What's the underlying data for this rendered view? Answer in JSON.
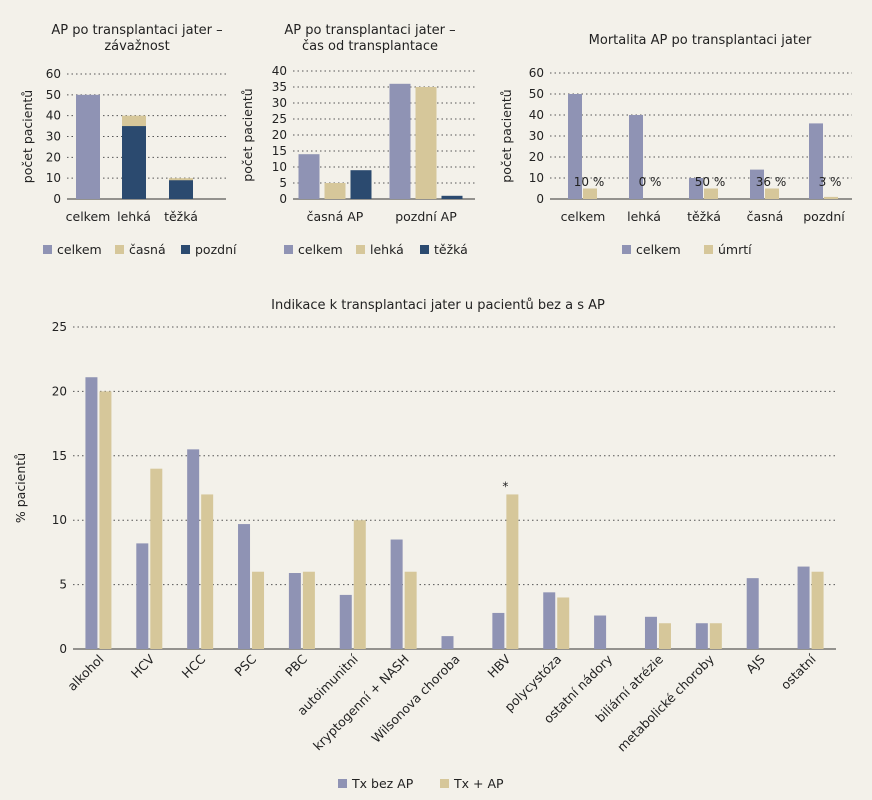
{
  "colors": {
    "celkem": "#8f93b4",
    "lehka": "#d6c79a",
    "casna": "#d6c79a",
    "pozdni": "#2b4a6f",
    "tezka": "#2b4a6f",
    "umrti": "#d6c79a",
    "tx_bez_ap": "#8f93b4",
    "tx_ap": "#d6c79a"
  },
  "chart_data": [
    {
      "type": "bar",
      "title": [
        "AP po transplantaci jater –",
        "závažnost"
      ],
      "ylabel": "počet pacientů",
      "ylim": [
        0,
        60
      ],
      "yticks": [
        0,
        10,
        20,
        30,
        40,
        50,
        60
      ],
      "grid": true,
      "categories": [
        "celkem",
        "lehká",
        "těžká"
      ],
      "series": [
        {
          "name": "celkem",
          "values": [
            50,
            null,
            null
          ]
        },
        {
          "name": "časná",
          "values": [
            null,
            40,
            10
          ]
        },
        {
          "name": "pozdní",
          "values": [
            null,
            35,
            9
          ]
        }
      ],
      "stacked_overlay": true,
      "legend": [
        "celkem",
        "časná",
        "pozdní"
      ],
      "legend_position": "bottom"
    },
    {
      "type": "bar",
      "title": [
        "AP po transplantaci jater –",
        "čas od transplantace"
      ],
      "ylabel": "počet pacientů",
      "ylim": [
        0,
        40
      ],
      "yticks": [
        0,
        5,
        10,
        15,
        20,
        25,
        30,
        35,
        40
      ],
      "grid": true,
      "categories": [
        "časná AP",
        "pozdní AP"
      ],
      "series": [
        {
          "name": "celkem",
          "values": [
            14,
            36
          ]
        },
        {
          "name": "lehká",
          "values": [
            5,
            35
          ]
        },
        {
          "name": "těžká",
          "values": [
            9,
            1
          ]
        }
      ],
      "legend": [
        "celkem",
        "lehká",
        "těžká"
      ],
      "legend_position": "bottom"
    },
    {
      "type": "bar",
      "title": [
        "Mortalita AP po transplantaci jater"
      ],
      "ylabel": "počet pacientů",
      "ylim": [
        0,
        60
      ],
      "yticks": [
        0,
        10,
        20,
        30,
        40,
        50,
        60
      ],
      "grid": true,
      "categories": [
        "celkem",
        "lehká",
        "těžká",
        "časná",
        "pozdní"
      ],
      "series": [
        {
          "name": "celkem",
          "values": [
            50,
            40,
            10,
            14,
            36
          ]
        },
        {
          "name": "úmrtí",
          "values": [
            5,
            0,
            5,
            5,
            1
          ]
        }
      ],
      "data_labels": [
        "10 %",
        "0 %",
        "50 %",
        "36 %",
        "3 %"
      ],
      "legend": [
        "celkem",
        "úmrtí"
      ],
      "legend_position": "bottom"
    },
    {
      "type": "bar",
      "title": [
        "Indikace k transplantaci jater u pacientů bez a s AP"
      ],
      "ylabel": "% pacientů",
      "ylim": [
        0,
        25
      ],
      "yticks": [
        0,
        5,
        10,
        15,
        20,
        25
      ],
      "grid": true,
      "categories": [
        "alkohol",
        "HCV",
        "HCC",
        "PSC",
        "PBC",
        "autoimunitní",
        "kryptogenní + NASH",
        "Wilsonova choroba",
        "HBV",
        "polycystóza",
        "ostatní nádory",
        "biliární atrézie",
        "metabolické choroby",
        "AJS",
        "ostatní"
      ],
      "series": [
        {
          "name": "Tx bez AP",
          "values": [
            21.1,
            8.2,
            15.5,
            9.7,
            5.9,
            4.2,
            8.5,
            1.0,
            2.8,
            4.4,
            2.6,
            2.5,
            2.0,
            5.5,
            6.4
          ]
        },
        {
          "name": "Tx + AP",
          "values": [
            20,
            14,
            12,
            6,
            6,
            10,
            6,
            0,
            12,
            4,
            0,
            2,
            2,
            0,
            6
          ]
        }
      ],
      "annotations": [
        {
          "category": "HBV",
          "text": "*"
        }
      ],
      "legend": [
        "Tx bez AP",
        "Tx + AP"
      ],
      "legend_position": "bottom"
    }
  ]
}
